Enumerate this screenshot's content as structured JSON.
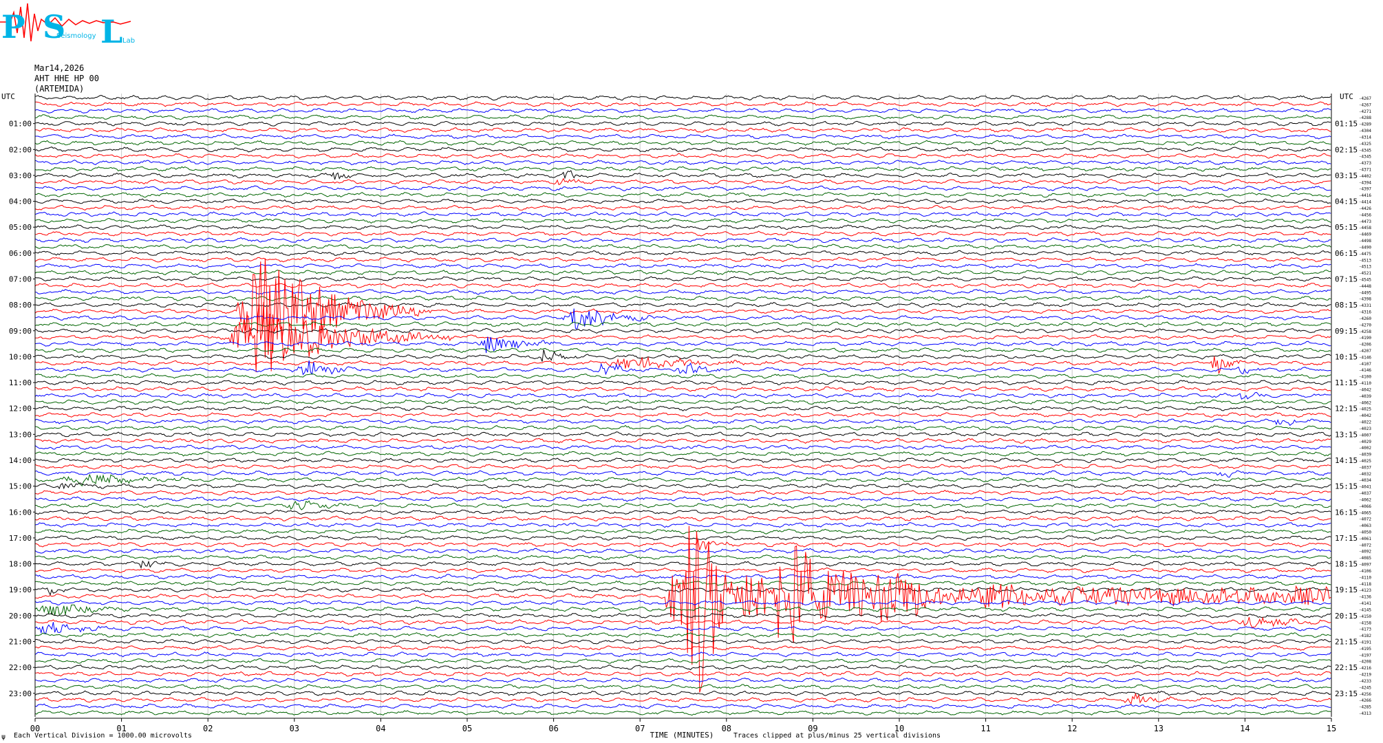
{
  "logo": {
    "letters": [
      "P",
      "S",
      "L"
    ],
    "small_text": [
      "Seismology",
      "Lab"
    ],
    "colors": {
      "p": "#00b4e6",
      "s": "#00b4e6",
      "l": "#00b4e6",
      "trace": "#ff0000"
    }
  },
  "header": {
    "date": "Mar14,2026",
    "station": "AHT HHE HP 00",
    "name": "(ARTEMIDA)"
  },
  "chart_data": {
    "type": "line",
    "title": "",
    "xlabel": "TIME (MINUTES)",
    "x_range": [
      0,
      15
    ],
    "x_ticks": [
      "00",
      "01",
      "02",
      "03",
      "04",
      "05",
      "06",
      "07",
      "08",
      "09",
      "10",
      "11",
      "12",
      "13",
      "14",
      "15"
    ],
    "left_axis_label": "UTC",
    "right_axis_label": "UTC",
    "left_ticks": [
      "01:00",
      "02:00",
      "03:00",
      "04:00",
      "05:00",
      "06:00",
      "07:00",
      "08:00",
      "09:00",
      "10:00",
      "11:00",
      "12:00",
      "13:00",
      "14:00",
      "15:00",
      "16:00",
      "17:00",
      "18:00",
      "19:00",
      "20:00",
      "21:00",
      "22:00",
      "23:00"
    ],
    "right_ticks": [
      "01:15",
      "02:15",
      "03:15",
      "04:15",
      "05:15",
      "06:15",
      "07:15",
      "08:15",
      "09:15",
      "10:15",
      "11:15",
      "12:15",
      "13:15",
      "14:15",
      "15:15",
      "16:15",
      "17:15",
      "18:15",
      "19:15",
      "20:15",
      "21:15",
      "22:15",
      "23:15"
    ],
    "trace_count": 96,
    "trace_colors": [
      "#000000",
      "#ff0000",
      "#0000ff",
      "#006400"
    ],
    "grid": "vertical lines at each minute",
    "right_values": [
      -4267,
      -4267,
      -4271,
      -4288,
      -4289,
      -4304,
      -4314,
      -4325,
      -4345,
      -4345,
      -4373,
      -4371,
      -4402,
      -4394,
      -4397,
      -4416,
      -4414,
      -4426,
      -4456,
      -4473,
      -4458,
      -4469,
      -4498,
      -4490,
      -4475,
      -4513,
      -4513,
      -4521,
      -4545,
      -4448,
      -4495,
      -4398,
      -4331,
      -4316,
      -4260,
      -4270,
      -4258,
      -4190,
      -4206,
      -4207,
      -4146,
      -4107,
      -4146,
      -4100,
      -4110,
      -4042,
      -4039,
      -4062,
      -4025,
      -4042,
      -4022,
      -4023,
      -4007,
      -4029,
      -4002,
      -4039,
      -4025,
      -4037,
      -4032,
      -4034,
      -4041,
      -4037,
      -4062,
      -4066,
      -4065,
      -4072,
      -4063,
      -4050,
      -4061,
      -4072,
      -4092,
      -4085,
      -4097,
      -4106,
      -4110,
      -4118,
      -4123,
      -4136,
      -4141,
      -4145,
      -4150,
      -4158,
      -4173,
      -4182,
      -4191,
      -4195,
      -4197,
      -4208,
      -4216,
      -4219,
      -4233,
      -4245,
      -4256,
      -4266,
      -4285,
      -4313
    ],
    "events": [
      {
        "trace": 12,
        "start_min": 3.4,
        "end_min": 3.8,
        "amp": 0.9
      },
      {
        "trace": 12,
        "start_min": 6.1,
        "end_min": 6.4,
        "amp": 1.2
      },
      {
        "trace": 13,
        "start_min": 6.0,
        "end_min": 6.4,
        "amp": 0.9
      },
      {
        "trace": 33,
        "start_min": 2.3,
        "end_min": 4.6,
        "amp": 9.0
      },
      {
        "trace": 37,
        "start_min": 2.2,
        "end_min": 4.8,
        "amp": 6.0
      },
      {
        "trace": 34,
        "start_min": 6.1,
        "end_min": 7.2,
        "amp": 2.2
      },
      {
        "trace": 38,
        "start_min": 5.1,
        "end_min": 6.2,
        "amp": 1.6
      },
      {
        "trace": 41,
        "start_min": 6.5,
        "end_min": 8.8,
        "amp": 1.0
      },
      {
        "trace": 41,
        "start_min": 13.6,
        "end_min": 14.0,
        "amp": 1.8
      },
      {
        "trace": 40,
        "start_min": 5.8,
        "end_min": 6.3,
        "amp": 1.3
      },
      {
        "trace": 42,
        "start_min": 3.0,
        "end_min": 3.8,
        "amp": 1.6
      },
      {
        "trace": 42,
        "start_min": 6.5,
        "end_min": 7.0,
        "amp": 1.6
      },
      {
        "trace": 42,
        "start_min": 7.4,
        "end_min": 8.0,
        "amp": 1.3
      },
      {
        "trace": 59,
        "start_min": 0.3,
        "end_min": 2.0,
        "amp": 1.1
      },
      {
        "trace": 60,
        "start_min": 0.2,
        "end_min": 0.9,
        "amp": 0.8
      },
      {
        "trace": 63,
        "start_min": 2.9,
        "end_min": 3.8,
        "amp": 0.9
      },
      {
        "trace": 72,
        "start_min": 1.2,
        "end_min": 1.6,
        "amp": 1.0
      },
      {
        "trace": 69,
        "start_min": 7.6,
        "end_min": 8.2,
        "amp": 0.9
      },
      {
        "trace": 77,
        "start_min": 7.3,
        "end_min": 15.0,
        "amp": 16.0
      },
      {
        "trace": 79,
        "start_min": 0.0,
        "end_min": 1.2,
        "amp": 1.2
      },
      {
        "trace": 82,
        "start_min": 0.0,
        "end_min": 1.0,
        "amp": 1.2
      },
      {
        "trace": 81,
        "start_min": 13.9,
        "end_min": 15.0,
        "amp": 1.0
      },
      {
        "trace": 93,
        "start_min": 12.6,
        "end_min": 13.3,
        "amp": 0.9
      },
      {
        "trace": 50,
        "start_min": 14.3,
        "end_min": 14.8,
        "amp": 0.8
      },
      {
        "trace": 58,
        "start_min": 13.6,
        "end_min": 14.1,
        "amp": 0.8
      },
      {
        "trace": 76,
        "start_min": 0.1,
        "end_min": 0.5,
        "amp": 0.8
      },
      {
        "trace": 42,
        "start_min": 13.9,
        "end_min": 14.2,
        "amp": 0.9
      },
      {
        "trace": 46,
        "start_min": 13.9,
        "end_min": 14.3,
        "amp": 0.8
      }
    ]
  },
  "footer": {
    "left_mark": "ψ",
    "vertical_division": "Each Vertical Division = 1000.00 microvolts",
    "clip_note": "Traces clipped at plus/minus 25 vertical divisions"
  }
}
